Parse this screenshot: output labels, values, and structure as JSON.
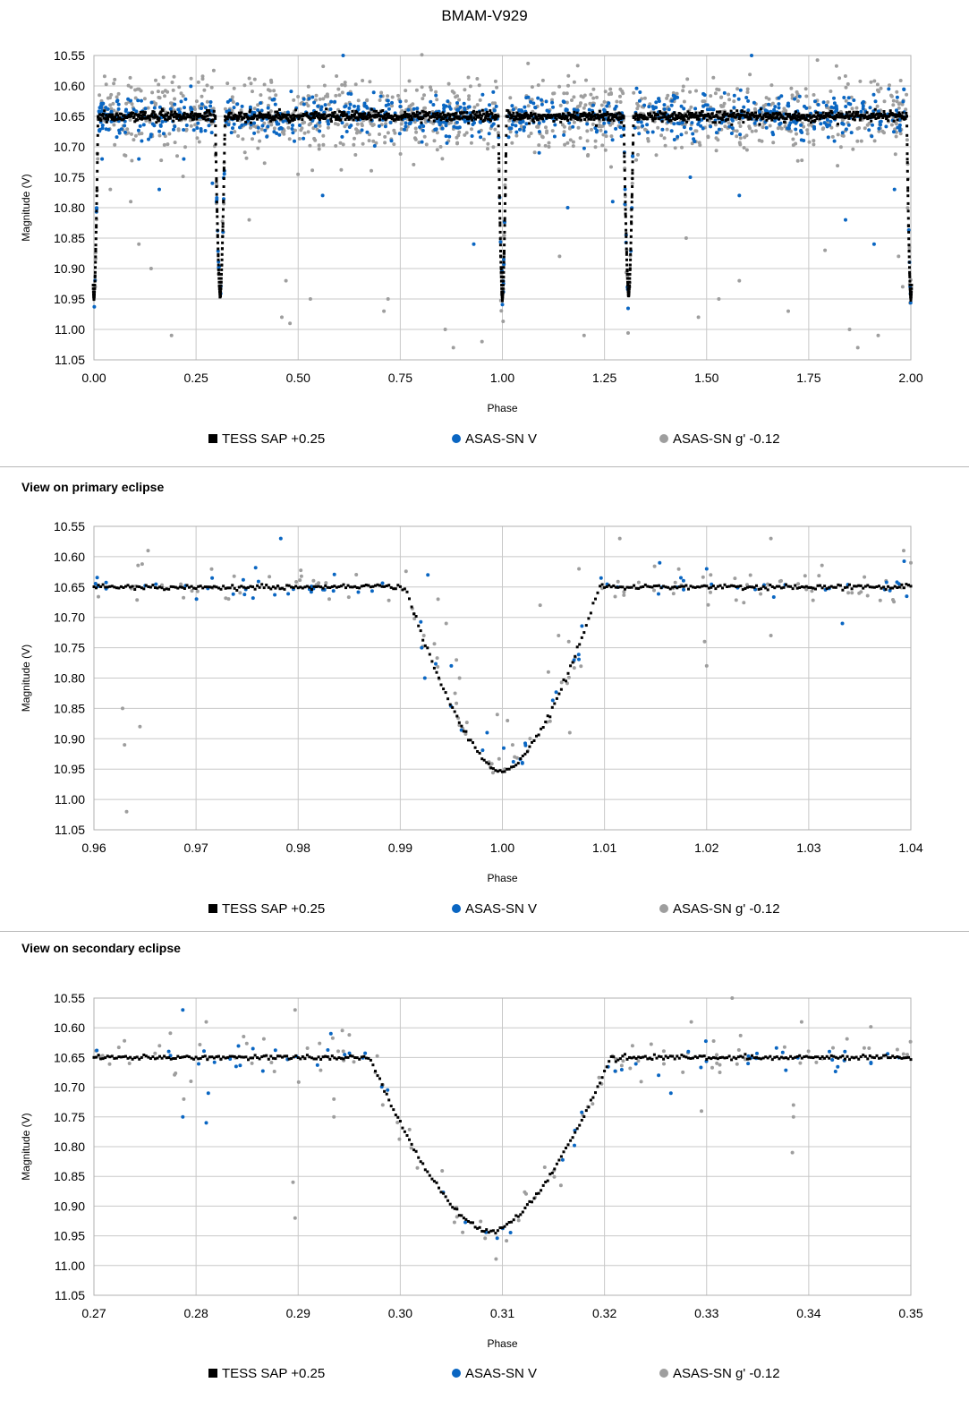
{
  "title": "BMAM-V929",
  "panel_titles": [
    "",
    "View on primary eclipse",
    "View on secondary eclipse"
  ],
  "colors": {
    "tess": "#000000",
    "asassn_v": "#0a66c2",
    "asassn_g": "#9e9e9e",
    "grid": "#c8c8c8"
  },
  "chart_data": [
    {
      "type": "scatter",
      "title": "BMAM-V929",
      "xlabel": "Phase",
      "ylabel": "Magnitude (V)",
      "xlim": [
        0.0,
        2.0
      ],
      "ylim": [
        10.55,
        11.05
      ],
      "y_inverted": true,
      "xticks": [
        "0.00",
        "0.25",
        "0.50",
        "0.75",
        "1.00",
        "1.25",
        "1.50",
        "1.75",
        "2.00"
      ],
      "yticks": [
        "10.55",
        "10.60",
        "10.65",
        "10.70",
        "10.75",
        "10.80",
        "10.85",
        "10.90",
        "10.95",
        "11.00",
        "11.05"
      ],
      "grid": true,
      "legend_position": "bottom",
      "series": [
        {
          "name": "TESS SAP +0.25",
          "marker": "square",
          "color": "#000000",
          "model": {
            "baseline": 10.65,
            "eclipses": [
              {
                "center": 0.0,
                "half_width": 0.01,
                "depth": 0.3
              },
              {
                "center": 0.309,
                "half_width": 0.012,
                "depth": 0.295
              },
              {
                "center": 1.0,
                "half_width": 0.01,
                "depth": 0.3
              },
              {
                "center": 1.309,
                "half_width": 0.012,
                "depth": 0.295
              },
              {
                "center": 2.0,
                "half_width": 0.01,
                "depth": 0.3
              }
            ]
          }
        },
        {
          "name": "ASAS-SN V",
          "marker": "circle",
          "color": "#0a66c2",
          "scatter": {
            "mean": 10.65,
            "sd": 0.018,
            "count": 850
          },
          "outliers": [
            [
              0.02,
              10.72
            ],
            [
              0.11,
              10.72
            ],
            [
              0.16,
              10.77
            ],
            [
              0.22,
              10.72
            ],
            [
              0.29,
              10.76
            ],
            [
              0.3,
              10.79
            ],
            [
              0.56,
              10.78
            ],
            [
              0.93,
              10.86
            ],
            [
              1.09,
              10.71
            ],
            [
              1.16,
              10.8
            ],
            [
              1.27,
              10.79
            ],
            [
              1.46,
              10.75
            ],
            [
              1.58,
              10.78
            ],
            [
              1.84,
              10.82
            ],
            [
              1.91,
              10.86
            ],
            [
              1.96,
              10.77
            ],
            [
              0.61,
              10.55
            ],
            [
              1.61,
              10.55
            ]
          ]
        },
        {
          "name": "ASAS-SN g' -0.12",
          "marker": "circle",
          "color": "#9e9e9e",
          "scatter": {
            "mean": 10.65,
            "sd": 0.03,
            "count": 1100
          },
          "outliers": [
            [
              0.04,
              10.77
            ],
            [
              0.09,
              10.79
            ],
            [
              0.11,
              10.86
            ],
            [
              0.14,
              10.9
            ],
            [
              0.19,
              11.01
            ],
            [
              0.38,
              10.82
            ],
            [
              0.46,
              10.98
            ],
            [
              0.48,
              10.99
            ],
            [
              0.47,
              10.92
            ],
            [
              0.53,
              10.95
            ],
            [
              0.71,
              10.97
            ],
            [
              0.72,
              10.95
            ],
            [
              0.86,
              11.0
            ],
            [
              0.88,
              11.03
            ],
            [
              0.95,
              11.02
            ],
            [
              1.14,
              10.88
            ],
            [
              1.2,
              11.01
            ],
            [
              1.45,
              10.85
            ],
            [
              1.48,
              10.98
            ],
            [
              1.53,
              10.95
            ],
            [
              1.58,
              10.92
            ],
            [
              1.7,
              10.97
            ],
            [
              1.79,
              10.87
            ],
            [
              1.85,
              11.0
            ],
            [
              1.87,
              11.03
            ],
            [
              1.92,
              11.01
            ],
            [
              1.97,
              10.88
            ],
            [
              1.98,
              10.93
            ]
          ]
        }
      ]
    },
    {
      "type": "scatter",
      "title": "View on primary eclipse",
      "xlabel": "Phase",
      "ylabel": "Magnitude (V)",
      "xlim": [
        0.96,
        1.04
      ],
      "ylim": [
        10.55,
        11.05
      ],
      "y_inverted": true,
      "xticks": [
        "0.96",
        "0.97",
        "0.98",
        "0.99",
        "1.00",
        "1.01",
        "1.02",
        "1.03",
        "1.04"
      ],
      "yticks": [
        "10.55",
        "10.60",
        "10.65",
        "10.70",
        "10.75",
        "10.80",
        "10.85",
        "10.90",
        "10.95",
        "11.00",
        "11.05"
      ],
      "grid": true,
      "legend_position": "bottom",
      "series": [
        {
          "name": "TESS SAP +0.25",
          "marker": "square",
          "color": "#000000",
          "model": {
            "baseline": 10.65,
            "eclipses": [
              {
                "center": 1.0,
                "half_width": 0.0095,
                "depth": 0.305
              }
            ]
          }
        },
        {
          "name": "ASAS-SN V",
          "marker": "circle",
          "color": "#0a66c2",
          "scatter": {
            "mean": 10.65,
            "sd": 0.012,
            "count": 75
          },
          "outliers": [
            [
              0.9783,
              10.57
            ],
            [
              0.9927,
              10.63
            ],
            [
              0.9921,
              10.75
            ],
            [
              0.9924,
              10.8
            ],
            [
              0.995,
              10.78
            ],
            [
              0.9985,
              10.89
            ],
            [
              1.0154,
              10.61
            ],
            [
              1.02,
              10.62
            ],
            [
              1.0333,
              10.71
            ]
          ]
        },
        {
          "name": "ASAS-SN g' -0.12",
          "marker": "circle",
          "color": "#9e9e9e",
          "scatter": {
            "mean": 10.655,
            "sd": 0.018,
            "count": 110
          },
          "outliers": [
            [
              0.9628,
              10.85
            ],
            [
              0.963,
              10.91
            ],
            [
              0.9632,
              11.02
            ],
            [
              0.9645,
              10.88
            ],
            [
              0.9653,
              10.59
            ],
            [
              0.9937,
              10.67
            ],
            [
              0.9945,
              10.71
            ],
            [
              0.9955,
              10.77
            ],
            [
              0.9958,
              10.8
            ],
            [
              0.9995,
              10.86
            ],
            [
              1.0005,
              10.87
            ],
            [
              1.001,
              10.91
            ],
            [
              1.0012,
              10.93
            ],
            [
              1.0025,
              10.92
            ],
            [
              1.0037,
              10.68
            ],
            [
              1.0045,
              10.79
            ],
            [
              1.0055,
              10.73
            ],
            [
              1.0065,
              10.74
            ],
            [
              1.0066,
              10.89
            ],
            [
              1.0075,
              10.62
            ],
            [
              1.0115,
              10.57
            ],
            [
              1.0198,
              10.74
            ],
            [
              1.02,
              10.78
            ],
            [
              1.0263,
              10.57
            ],
            [
              1.0263,
              10.73
            ],
            [
              1.0393,
              10.59
            ],
            [
              1.04,
              10.61
            ]
          ]
        }
      ]
    },
    {
      "type": "scatter",
      "title": "View on secondary eclipse",
      "xlabel": "Phase",
      "ylabel": "Magnitude (V)",
      "xlim": [
        0.27,
        0.35
      ],
      "ylim": [
        10.55,
        11.05
      ],
      "y_inverted": true,
      "xticks": [
        "0.27",
        "0.28",
        "0.29",
        "0.30",
        "0.31",
        "0.32",
        "0.33",
        "0.34",
        "0.35"
      ],
      "yticks": [
        "10.55",
        "10.60",
        "10.65",
        "10.70",
        "10.75",
        "10.80",
        "10.85",
        "10.90",
        "10.95",
        "11.00",
        "11.05"
      ],
      "grid": true,
      "legend_position": "bottom",
      "series": [
        {
          "name": "TESS SAP +0.25",
          "marker": "square",
          "color": "#000000",
          "model": {
            "baseline": 10.65,
            "eclipses": [
              {
                "center": 0.3088,
                "half_width": 0.0118,
                "depth": 0.295
              }
            ]
          }
        },
        {
          "name": "ASAS-SN V",
          "marker": "circle",
          "color": "#0a66c2",
          "scatter": {
            "mean": 10.648,
            "sd": 0.012,
            "count": 60
          },
          "outliers": [
            [
              0.2787,
              10.57
            ],
            [
              0.2787,
              10.75
            ],
            [
              0.2812,
              10.71
            ],
            [
              0.281,
              10.76
            ],
            [
              0.2932,
              10.61
            ],
            [
              0.3265,
              10.71
            ],
            [
              0.3253,
              10.68
            ]
          ]
        },
        {
          "name": "ASAS-SN g' -0.12",
          "marker": "circle",
          "color": "#9e9e9e",
          "scatter": {
            "mean": 10.645,
            "sd": 0.022,
            "count": 110
          },
          "outliers": [
            [
              0.2788,
              10.72
            ],
            [
              0.2795,
              10.69
            ],
            [
              0.281,
              10.59
            ],
            [
              0.2935,
              10.72
            ],
            [
              0.2935,
              10.75
            ],
            [
              0.2895,
              10.86
            ],
            [
              0.2897,
              10.92
            ],
            [
              0.2897,
              10.57
            ],
            [
              0.3295,
              10.74
            ],
            [
              0.3385,
              10.73
            ],
            [
              0.3385,
              10.75
            ],
            [
              0.3384,
              10.81
            ],
            [
              0.3325,
              10.55
            ],
            [
              0.3285,
              10.59
            ],
            [
              0.3393,
              10.59
            ]
          ]
        }
      ]
    }
  ]
}
